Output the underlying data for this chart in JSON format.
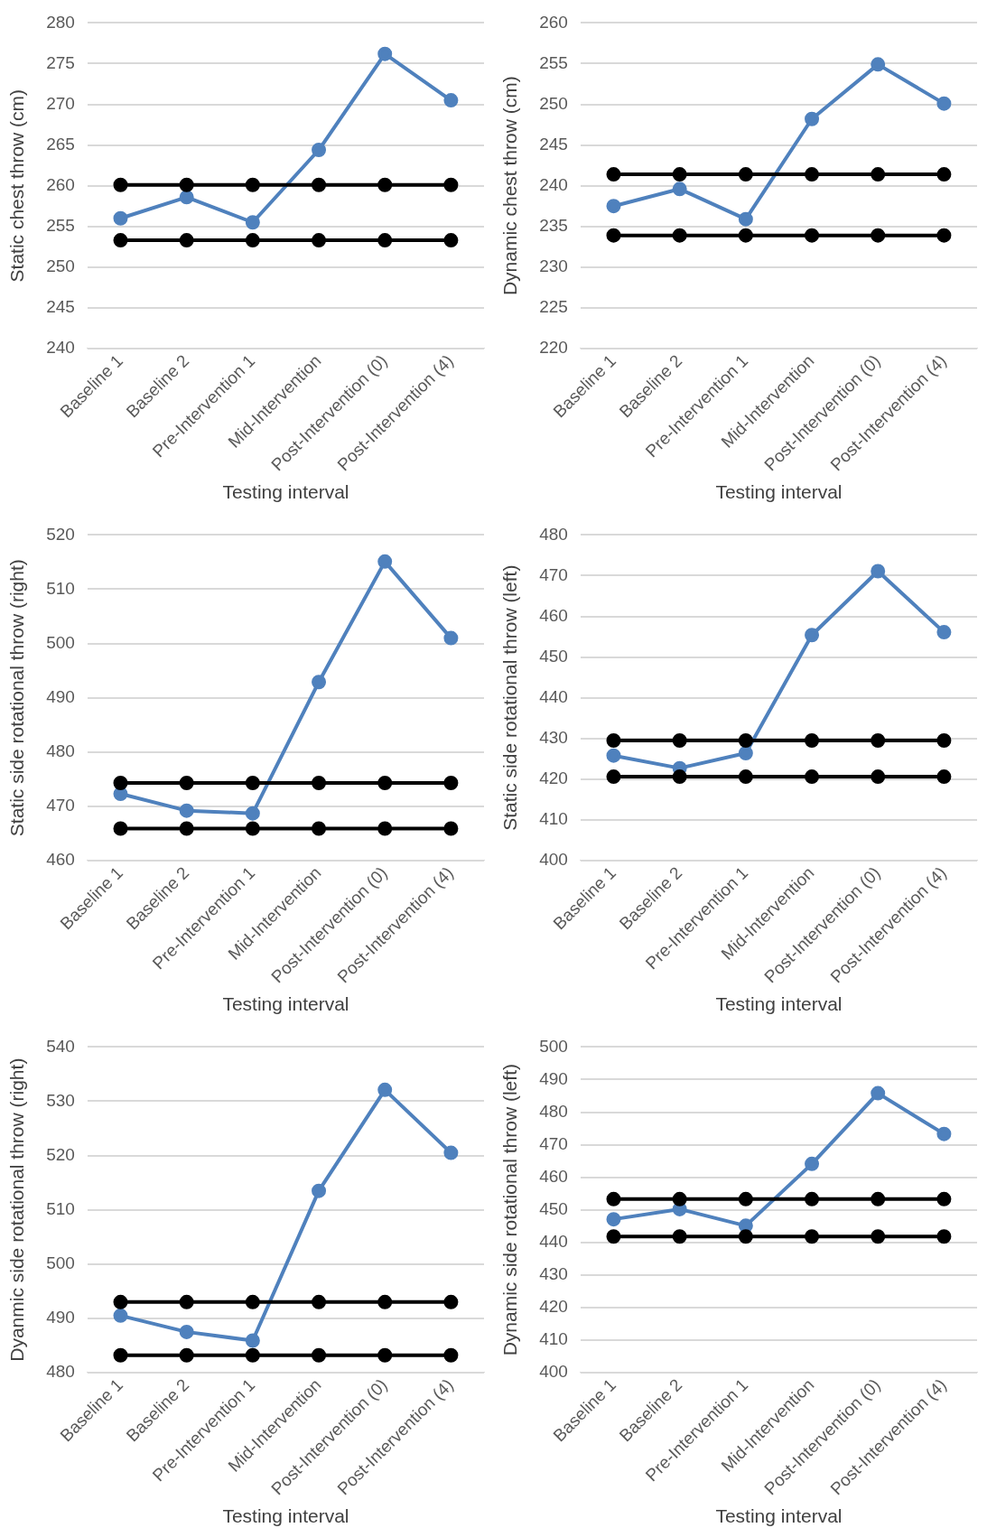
{
  "chart_data": [
    {
      "type": "line",
      "ylabel": "Static chest throw (cm)",
      "xlabel": "Testing interval",
      "categories": [
        "Baseline 1",
        "Baseline 2",
        "Pre-Intervention 1",
        "Mid-Intervention",
        "Post-Intervention (0)",
        "Post-Intervention (4)"
      ],
      "series": [
        {
          "color": "#000000",
          "values": [
            260.1,
            260.1,
            260.1,
            260.1,
            260.1,
            260.1
          ]
        },
        {
          "color": "#000000",
          "values": [
            253.3,
            253.3,
            253.3,
            253.3,
            253.3,
            253.3
          ]
        },
        {
          "color": "#4f81bd",
          "values": [
            256.0,
            258.6,
            255.5,
            264.4,
            276.2,
            270.5
          ]
        }
      ],
      "ylim": [
        240,
        280
      ],
      "yticks": [
        240,
        245,
        250,
        255,
        260,
        265,
        270,
        275,
        280
      ],
      "grid": "y",
      "marker": "circle"
    },
    {
      "type": "line",
      "ylabel": "Dynamic chest throw (cm)",
      "xlabel": "Testing interval",
      "categories": [
        "Baseline 1",
        "Baseline 2",
        "Pre-Intervention 1",
        "Mid-Intervention",
        "Post-Intervention (0)",
        "Post-Intervention (4)"
      ],
      "series": [
        {
          "color": "#000000",
          "values": [
            241.4,
            241.4,
            241.4,
            241.4,
            241.4,
            241.4
          ]
        },
        {
          "color": "#000000",
          "values": [
            233.9,
            233.9,
            233.9,
            233.9,
            233.9,
            233.9
          ]
        },
        {
          "color": "#4f81bd",
          "values": [
            237.5,
            239.6,
            235.9,
            248.2,
            254.9,
            250.1
          ]
        }
      ],
      "ylim": [
        220,
        260
      ],
      "yticks": [
        220,
        225,
        230,
        235,
        240,
        245,
        250,
        255,
        260
      ],
      "grid": "y",
      "marker": "circle"
    },
    {
      "type": "line",
      "ylabel": "Static side rotational throw (right)",
      "xlabel": "Testing interval",
      "categories": [
        "Baseline 1",
        "Baseline 2",
        "Pre-Intervention 1",
        "Mid-Intervention",
        "Post-Intervention (0)",
        "Post-Intervention (4)"
      ],
      "series": [
        {
          "color": "#000000",
          "values": [
            474.3,
            474.3,
            474.3,
            474.3,
            474.3,
            474.3
          ]
        },
        {
          "color": "#000000",
          "values": [
            465.9,
            465.9,
            465.9,
            465.9,
            465.9,
            465.9
          ]
        },
        {
          "color": "#4f81bd",
          "values": [
            472.3,
            469.2,
            468.7,
            492.9,
            515.1,
            501.0
          ]
        }
      ],
      "ylim": [
        460,
        520
      ],
      "yticks": [
        460,
        470,
        480,
        490,
        500,
        510,
        520
      ],
      "grid": "y",
      "marker": "circle"
    },
    {
      "type": "line",
      "ylabel": "Static side rotational throw (left)",
      "xlabel": "Testing interval",
      "categories": [
        "Baseline 1",
        "Baseline 2",
        "Pre-Intervention 1",
        "Mid-Intervention",
        "Post-Intervention (0)",
        "Post-Intervention (4)"
      ],
      "series": [
        {
          "color": "#000000",
          "values": [
            429.5,
            429.5,
            429.5,
            429.5,
            429.5,
            429.5
          ]
        },
        {
          "color": "#000000",
          "values": [
            420.6,
            420.6,
            420.6,
            420.6,
            420.6,
            420.6
          ]
        },
        {
          "color": "#4f81bd",
          "values": [
            425.8,
            422.7,
            426.4,
            455.4,
            471.1,
            456.1
          ]
        }
      ],
      "ylim": [
        400,
        480
      ],
      "yticks": [
        400,
        410,
        420,
        430,
        440,
        450,
        460,
        470,
        480
      ],
      "grid": "y",
      "marker": "circle"
    },
    {
      "type": "line",
      "ylabel": "Dyanmic side rotational throw (right)",
      "xlabel": "Testing interval",
      "categories": [
        "Baseline 1",
        "Baseline 2",
        "Pre-Intervention 1",
        "Mid-Intervention",
        "Post-Intervention (0)",
        "Post-Intervention (4)"
      ],
      "series": [
        {
          "color": "#000000",
          "values": [
            493.0,
            493.0,
            493.0,
            493.0,
            493.0,
            493.0
          ]
        },
        {
          "color": "#000000",
          "values": [
            483.2,
            483.2,
            483.2,
            483.2,
            483.2,
            483.2
          ]
        },
        {
          "color": "#4f81bd",
          "values": [
            490.5,
            487.5,
            485.9,
            513.5,
            532.1,
            520.5
          ]
        }
      ],
      "ylim": [
        480,
        540
      ],
      "yticks": [
        480,
        490,
        500,
        510,
        520,
        530,
        540
      ],
      "grid": "y",
      "marker": "circle"
    },
    {
      "type": "line",
      "ylabel": "Dynamic side rotational throw (left)",
      "xlabel": "Testing interval",
      "categories": [
        "Baseline 1",
        "Baseline 2",
        "Pre-Intervention 1",
        "Mid-Intervention",
        "Post-Intervention (0)",
        "Post-Intervention (4)"
      ],
      "series": [
        {
          "color": "#000000",
          "values": [
            453.3,
            453.3,
            453.3,
            453.3,
            453.3,
            453.3
          ]
        },
        {
          "color": "#000000",
          "values": [
            441.8,
            441.8,
            441.8,
            441.8,
            441.8,
            441.8
          ]
        },
        {
          "color": "#4f81bd",
          "values": [
            447.1,
            450.2,
            445.1,
            464.1,
            485.8,
            473.3
          ]
        }
      ],
      "ylim": [
        400,
        500
      ],
      "yticks": [
        400,
        410,
        420,
        430,
        440,
        450,
        460,
        470,
        480,
        490,
        500
      ],
      "grid": "y",
      "marker": "circle"
    }
  ]
}
